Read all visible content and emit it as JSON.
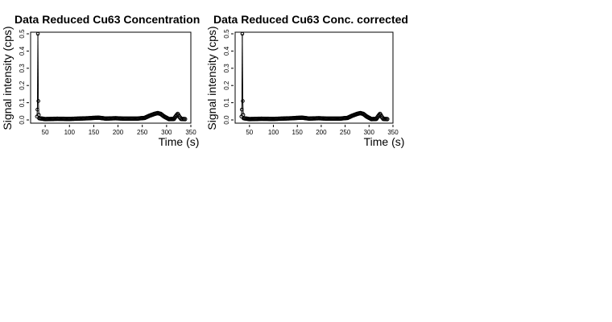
{
  "chart_data": [
    {
      "type": "scatter",
      "title": "Data Reduced Cu63 Concentration",
      "xlabel": "Time (s)",
      "ylabel": "Signal intensity (cps)",
      "xlim": [
        20,
        350
      ],
      "ylim": [
        0,
        0.5
      ],
      "xticks": [
        "50",
        "100",
        "150",
        "200",
        "250",
        "300",
        "350"
      ],
      "yticks": [
        "0.0",
        "0.1",
        "0.2",
        "0.3",
        "0.4",
        "0.5"
      ],
      "grid": false,
      "spike": {
        "x": [
          33,
          34,
          35,
          36,
          37
        ],
        "y": [
          0.02,
          0.06,
          0.5,
          0.11,
          0.03
        ]
      },
      "baseline": [
        [
          38,
          0.01
        ],
        [
          50,
          0.005
        ],
        [
          75,
          0.007
        ],
        [
          100,
          0.006
        ],
        [
          120,
          0.008
        ],
        [
          140,
          0.01
        ],
        [
          150,
          0.012
        ],
        [
          160,
          0.013
        ],
        [
          175,
          0.008
        ],
        [
          195,
          0.01
        ],
        [
          210,
          0.008
        ],
        [
          240,
          0.008
        ],
        [
          255,
          0.012
        ],
        [
          265,
          0.025
        ],
        [
          275,
          0.035
        ],
        [
          282,
          0.04
        ],
        [
          288,
          0.035
        ],
        [
          295,
          0.02
        ],
        [
          305,
          0.005
        ],
        [
          315,
          0.006
        ],
        [
          320,
          0.025
        ],
        [
          323,
          0.035
        ],
        [
          326,
          0.02
        ],
        [
          330,
          0.006
        ],
        [
          338,
          0.005
        ]
      ]
    },
    {
      "type": "scatter",
      "title": "Data Reduced Cu63 Conc. corrected",
      "xlabel": "Time (s)",
      "ylabel": "Signal intensity (cps)",
      "xlim": [
        20,
        350
      ],
      "ylim": [
        0,
        0.5
      ],
      "xticks": [
        "50",
        "100",
        "150",
        "200",
        "250",
        "300",
        "350"
      ],
      "yticks": [
        "0.0",
        "0.1",
        "0.2",
        "0.3",
        "0.4",
        "0.5"
      ],
      "grid": false,
      "spike": {
        "x": [
          33,
          34,
          35,
          36,
          37
        ],
        "y": [
          0.02,
          0.06,
          0.5,
          0.11,
          0.03
        ]
      },
      "baseline": [
        [
          38,
          0.01
        ],
        [
          50,
          0.005
        ],
        [
          75,
          0.007
        ],
        [
          100,
          0.006
        ],
        [
          120,
          0.008
        ],
        [
          140,
          0.01
        ],
        [
          150,
          0.012
        ],
        [
          160,
          0.013
        ],
        [
          175,
          0.008
        ],
        [
          195,
          0.01
        ],
        [
          210,
          0.008
        ],
        [
          240,
          0.008
        ],
        [
          255,
          0.012
        ],
        [
          265,
          0.025
        ],
        [
          275,
          0.035
        ],
        [
          282,
          0.04
        ],
        [
          288,
          0.035
        ],
        [
          295,
          0.02
        ],
        [
          305,
          0.005
        ],
        [
          315,
          0.006
        ],
        [
          320,
          0.025
        ],
        [
          323,
          0.035
        ],
        [
          326,
          0.02
        ],
        [
          330,
          0.006
        ],
        [
          338,
          0.005
        ]
      ]
    }
  ]
}
